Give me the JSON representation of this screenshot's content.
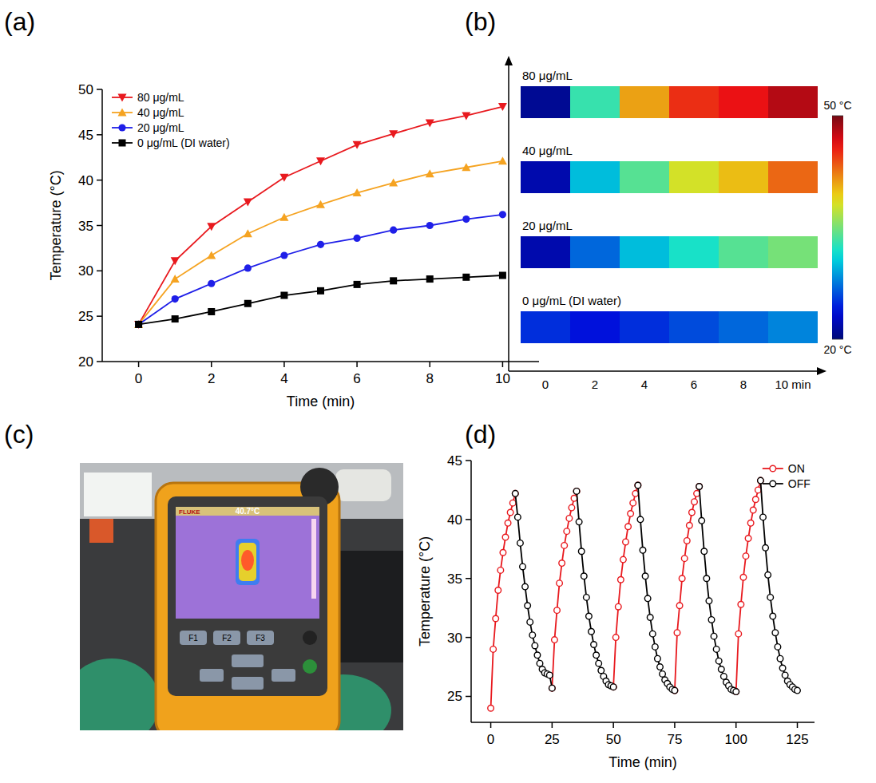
{
  "chart_data": [
    {
      "type": "line",
      "panel": "(a)",
      "x_label": "Time (min)",
      "y_label": "Temperature (°C)",
      "x": [
        0,
        1,
        2,
        3,
        4,
        5,
        6,
        7,
        8,
        9,
        10
      ],
      "xlim": [
        -1,
        11
      ],
      "xticks": [
        0,
        2,
        4,
        6,
        8,
        10
      ],
      "ylim": [
        20,
        50
      ],
      "yticks": [
        20,
        25,
        30,
        35,
        40,
        45,
        50
      ],
      "legend": "upper left",
      "series": [
        {
          "name": "80 μg/mL",
          "color": "#e8191e",
          "marker": "triangle-down",
          "line_style": "solid",
          "values": [
            24.1,
            31.1,
            34.9,
            37.6,
            40.3,
            42.1,
            43.9,
            45.1,
            46.3,
            47.1,
            48.1
          ]
        },
        {
          "name": "40 μg/mL",
          "color": "#f5a321",
          "marker": "triangle-up",
          "line_style": "solid",
          "values": [
            24.1,
            29.1,
            31.7,
            34.1,
            35.9,
            37.3,
            38.6,
            39.7,
            40.7,
            41.4,
            42.1
          ]
        },
        {
          "name": "20 μg/mL",
          "color": "#1f1fe8",
          "marker": "circle",
          "line_style": "solid",
          "values": [
            24.1,
            26.9,
            28.6,
            30.3,
            31.7,
            32.9,
            33.6,
            34.5,
            35.0,
            35.7,
            36.2
          ]
        },
        {
          "name": "0  μg/mL (DI water)",
          "color": "#000000",
          "marker": "square",
          "line_style": "solid",
          "values": [
            24.1,
            24.7,
            25.5,
            26.4,
            27.3,
            27.8,
            28.5,
            28.9,
            29.1,
            29.3,
            29.5
          ]
        }
      ]
    },
    {
      "type": "heatmap",
      "panel": "(b)",
      "rows": [
        "80 μg/mL",
        "40 μg/mL",
        "20 μg/mL",
        "0 μg/mL (DI water)"
      ],
      "categories": [
        "0",
        "2",
        "4",
        "6",
        "8",
        "10 min"
      ],
      "cells": [
        [
          21,
          33,
          41,
          45,
          46,
          48
        ],
        [
          22,
          30,
          34,
          38,
          40,
          43
        ],
        [
          22,
          27,
          30,
          32,
          34,
          35
        ],
        [
          25,
          24,
          25,
          26,
          27,
          28
        ]
      ],
      "colorbar": {
        "range": [
          20,
          50
        ],
        "ticks": [
          {
            "value": 50,
            "label": "50 °C"
          },
          {
            "value": 20,
            "label": "20 °C"
          }
        ]
      }
    },
    {
      "type": "line",
      "panel": "(d)",
      "x_label": "Time (min)",
      "y_label": "Temperature (°C)",
      "xlim": [
        -8,
        132
      ],
      "xticks": [
        0,
        25,
        50,
        75,
        100,
        125
      ],
      "ylim": [
        22.8,
        45
      ],
      "yticks": [
        25,
        30,
        35,
        40,
        45
      ],
      "legend": "upper right",
      "series": [
        {
          "name": "ON",
          "color": "#e8191e",
          "marker": "circle-open",
          "line_style": "solid",
          "x": [
            0,
            1,
            2,
            3,
            4,
            5,
            6,
            7,
            8,
            9,
            10,
            17.5,
            25,
            26,
            27,
            28,
            29,
            30,
            31,
            32,
            33,
            34,
            35,
            42.5,
            50,
            51,
            52,
            53,
            54,
            55,
            56,
            57,
            58,
            59,
            60,
            67.5,
            75,
            76,
            77,
            78,
            79,
            80,
            81,
            82,
            83,
            84,
            85,
            92.5,
            100,
            101,
            102,
            103,
            104,
            105,
            106,
            107,
            108,
            109,
            110
          ],
          "values": [
            24.0,
            29.0,
            31.6,
            34.0,
            35.7,
            37.2,
            38.5,
            39.7,
            40.6,
            41.4,
            42.2,
            null,
            25.7,
            29.8,
            32.3,
            34.6,
            36.3,
            37.8,
            39.0,
            40.1,
            41.0,
            41.8,
            42.4,
            null,
            25.8,
            30.0,
            32.6,
            34.9,
            36.6,
            38.1,
            39.4,
            40.5,
            41.4,
            42.2,
            42.9,
            null,
            25.5,
            30.4,
            32.7,
            35.0,
            36.7,
            38.2,
            39.5,
            40.6,
            41.5,
            42.2,
            42.8,
            null,
            25.4,
            30.3,
            32.8,
            35.1,
            36.9,
            38.4,
            39.7,
            40.8,
            41.7,
            42.5,
            43.3
          ]
        },
        {
          "name": "OFF",
          "color": "#000000",
          "marker": "circle-open",
          "line_style": "solid",
          "x": [
            10,
            11,
            12,
            13,
            14,
            15,
            16,
            17,
            18,
            19,
            20,
            21,
            22,
            23,
            24,
            25,
            30,
            35,
            36,
            37,
            38,
            39,
            40,
            41,
            42,
            43,
            44,
            45,
            46,
            47,
            48,
            49,
            50,
            55,
            60,
            61,
            62,
            63,
            64,
            65,
            66,
            67,
            68,
            69,
            70,
            71,
            72,
            73,
            74,
            75,
            80,
            85,
            86,
            87,
            88,
            89,
            90,
            91,
            92,
            93,
            94,
            95,
            96,
            97,
            98,
            99,
            100,
            105,
            110,
            111,
            112,
            113,
            114,
            115,
            116,
            117,
            118,
            119,
            120,
            121,
            122,
            123,
            124,
            125
          ],
          "values": [
            42.2,
            40.2,
            38.0,
            36.0,
            34.3,
            32.7,
            31.3,
            30.2,
            29.3,
            28.5,
            27.8,
            27.3,
            27.0,
            26.9,
            26.8,
            25.7,
            null,
            42.4,
            39.8,
            37.3,
            35.2,
            33.4,
            31.8,
            30.5,
            29.4,
            28.5,
            27.8,
            27.2,
            26.7,
            26.3,
            26.0,
            25.9,
            25.8,
            null,
            42.9,
            40.0,
            37.4,
            35.2,
            33.3,
            31.7,
            30.3,
            29.2,
            28.2,
            27.5,
            26.9,
            26.4,
            26.1,
            25.8,
            25.6,
            25.5,
            null,
            42.8,
            39.9,
            37.3,
            35.0,
            33.1,
            31.5,
            30.1,
            29.0,
            28.0,
            27.3,
            26.7,
            26.2,
            25.9,
            25.6,
            25.5,
            25.4,
            null,
            43.3,
            40.2,
            37.6,
            35.3,
            33.4,
            31.8,
            30.4,
            29.2,
            28.2,
            27.4,
            26.8,
            26.3,
            26.0,
            25.8,
            25.6,
            25.5
          ]
        }
      ]
    }
  ],
  "photo": {
    "panel": "(c)",
    "brand": "FLUKE",
    "reading": "40.7°C",
    "buttons": [
      "F1",
      "F2",
      "F3"
    ]
  }
}
